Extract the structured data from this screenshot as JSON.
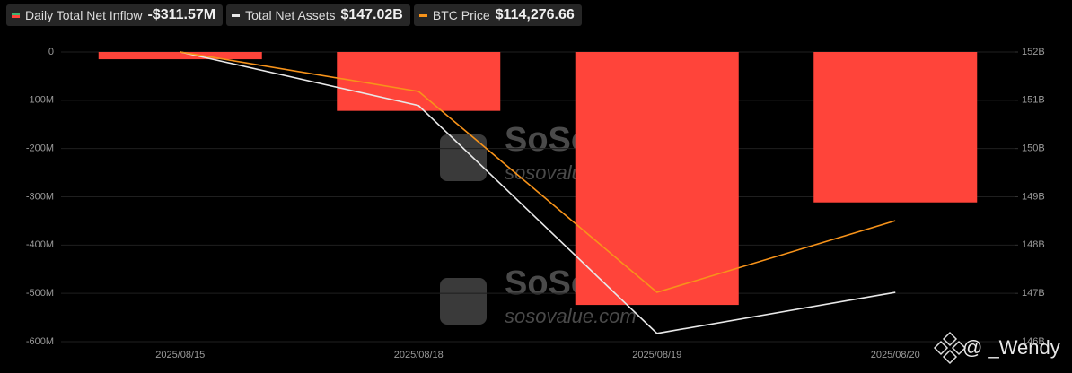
{
  "chart_data": {
    "type": "bar",
    "categories": [
      "2025/08/15",
      "2025/08/18",
      "2025/08/19",
      "2025/08/20"
    ],
    "series": [
      {
        "name": "Daily Total Net Inflow",
        "legend_value": "-$311.57M",
        "color": "#ff443a",
        "type": "bar",
        "values": [
          -15,
          -122,
          -524,
          -311.57
        ]
      },
      {
        "name": "Total Net Assets",
        "legend_value": "$147.02B",
        "color": "#e8e8e8",
        "type": "line",
        "axis": "y2",
        "values": [
          152.0,
          150.89,
          146.17,
          147.02
        ]
      },
      {
        "name": "BTC Price",
        "legend_value": "$114,276.66",
        "color": "#f7931a",
        "type": "line",
        "axis": "y3",
        "values": [
          118040,
          117160,
          112680,
          114276.66
        ]
      }
    ],
    "ylim": [
      -600,
      0
    ],
    "yticks": [
      {
        "value": 0,
        "label": "0"
      },
      {
        "value": -100,
        "label": "-100M"
      },
      {
        "value": -200,
        "label": "-200M"
      },
      {
        "value": -300,
        "label": "-300M"
      },
      {
        "value": -400,
        "label": "-400M"
      },
      {
        "value": -500,
        "label": "-500M"
      },
      {
        "value": -600,
        "label": "-600M"
      }
    ],
    "y2lim": [
      146,
      152
    ],
    "y2ticks": [
      {
        "value": 152,
        "label": "152B"
      },
      {
        "value": 151,
        "label": "151B"
      },
      {
        "value": 150,
        "label": "150B"
      },
      {
        "value": 149,
        "label": "149B"
      },
      {
        "value": 148,
        "label": "148B"
      },
      {
        "value": 147,
        "label": "147B"
      },
      {
        "value": 146,
        "label": "146B"
      }
    ],
    "y3lim": [
      111580,
      118040
    ],
    "grid": true,
    "watermark": [
      "SoSoValue",
      "sosovalue.com"
    ],
    "credit": "@ _Wendy"
  }
}
